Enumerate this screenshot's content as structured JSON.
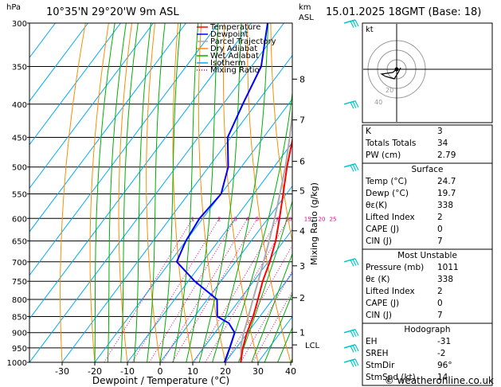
{
  "header": {
    "hpa": "hPa",
    "location": "10°35'N 29°20'W 9m ASL",
    "km": "km",
    "asl": "ASL",
    "datetime": "15.01.2025 18GMT (Base: 18)"
  },
  "chart_data": {
    "type": "line",
    "xlabel": "Dewpoint / Temperature (°C)",
    "ylabel_right": "Mixing Ratio (g/kg)",
    "x_ticks": [
      -30,
      -20,
      -10,
      0,
      10,
      20,
      30,
      40
    ],
    "xlim": [
      -35,
      40
    ],
    "pressure_levels": [
      300,
      350,
      400,
      450,
      500,
      550,
      600,
      650,
      700,
      750,
      800,
      850,
      900,
      950,
      1000
    ],
    "ylim": [
      300,
      1000
    ],
    "km_ticks": [
      {
        "km": "1",
        "p": 899
      },
      {
        "km": "2",
        "p": 795
      },
      {
        "km": "3",
        "p": 710
      },
      {
        "km": "4",
        "p": 627
      },
      {
        "km": "5",
        "p": 544
      },
      {
        "km": "6",
        "p": 490
      },
      {
        "km": "7",
        "p": 423
      },
      {
        "km": "8",
        "p": 366
      }
    ],
    "lcl": {
      "label": "LCL",
      "p": 940
    },
    "mixing_ratio_labels": [
      "1",
      "2",
      "3",
      "4",
      "5",
      "8",
      "10",
      "15",
      "20",
      "25"
    ],
    "legend": [
      {
        "name": "Temperature",
        "color": "#ff0000"
      },
      {
        "name": "Dewpoint",
        "color": "#0000ff"
      },
      {
        "name": "Parcel Trajectory",
        "color": "#aaaaaa"
      },
      {
        "name": "Dry Adiabat",
        "color": "#ff8c00"
      },
      {
        "name": "Wet Adiabat",
        "color": "#00b000"
      },
      {
        "name": "Isotherm",
        "color": "#00aaff"
      },
      {
        "name": "Mixing Ratio",
        "color": "#e0007f"
      }
    ],
    "series": [
      {
        "name": "Temperature",
        "points": [
          {
            "p": 1000,
            "t": 24.7
          },
          {
            "p": 950,
            "t": 22.0
          },
          {
            "p": 900,
            "t": 19.8
          },
          {
            "p": 850,
            "t": 18.0
          },
          {
            "p": 800,
            "t": 15.5
          },
          {
            "p": 750,
            "t": 12.8
          },
          {
            "p": 700,
            "t": 10.5
          },
          {
            "p": 650,
            "t": 7.5
          },
          {
            "p": 600,
            "t": 3.5
          },
          {
            "p": 550,
            "t": -1.0
          },
          {
            "p": 500,
            "t": -6.0
          },
          {
            "p": 450,
            "t": -11.0
          },
          {
            "p": 400,
            "t": -18.0
          },
          {
            "p": 350,
            "t": -26.0
          },
          {
            "p": 300,
            "t": -34.5
          }
        ]
      },
      {
        "name": "Dewpoint",
        "points": [
          {
            "p": 1000,
            "t": 19.7
          },
          {
            "p": 950,
            "t": 18.0
          },
          {
            "p": 900,
            "t": 16.0
          },
          {
            "p": 870,
            "t": 12.0
          },
          {
            "p": 850,
            "t": 7.0
          },
          {
            "p": 800,
            "t": 3.0
          },
          {
            "p": 750,
            "t": -8.0
          },
          {
            "p": 700,
            "t": -18.0
          },
          {
            "p": 650,
            "t": -20.0
          },
          {
            "p": 600,
            "t": -21.0
          },
          {
            "p": 550,
            "t": -20.0
          },
          {
            "p": 500,
            "t": -24.0
          },
          {
            "p": 450,
            "t": -31.0
          },
          {
            "p": 400,
            "t": -34.0
          },
          {
            "p": 350,
            "t": -37.0
          },
          {
            "p": 300,
            "t": -45.0
          }
        ]
      },
      {
        "name": "Parcel Trajectory",
        "points": [
          {
            "p": 1000,
            "t": 24.7
          },
          {
            "p": 940,
            "t": 20.8
          },
          {
            "p": 900,
            "t": 18.8
          },
          {
            "p": 850,
            "t": 16.5
          },
          {
            "p": 800,
            "t": 14.0
          },
          {
            "p": 750,
            "t": 11.4
          },
          {
            "p": 700,
            "t": 8.6
          },
          {
            "p": 650,
            "t": 5.5
          },
          {
            "p": 600,
            "t": 2.0
          },
          {
            "p": 550,
            "t": -2.0
          },
          {
            "p": 500,
            "t": -6.5
          },
          {
            "p": 450,
            "t": -12.0
          },
          {
            "p": 400,
            "t": -18.5
          },
          {
            "p": 350,
            "t": -26.5
          },
          {
            "p": 300,
            "t": -35.5
          }
        ]
      }
    ],
    "wind_barbs_p": [
      300,
      400,
      500,
      700,
      900,
      950,
      1000
    ]
  },
  "hodograph": {
    "label": "kt",
    "ring_labels": [
      "20",
      "40"
    ]
  },
  "table": {
    "indices": [
      {
        "label": "K",
        "value": "3"
      },
      {
        "label": "Totals Totals",
        "value": "34"
      },
      {
        "label": "PW (cm)",
        "value": "2.79"
      }
    ],
    "surface": {
      "title": "Surface",
      "rows": [
        {
          "label": "Temp (°C)",
          "value": "24.7"
        },
        {
          "label": "Dewp (°C)",
          "value": "19.7"
        },
        {
          "label": "θε(K)",
          "value": "338"
        },
        {
          "label": "Lifted Index",
          "value": "2"
        },
        {
          "label": "CAPE (J)",
          "value": "0"
        },
        {
          "label": "CIN (J)",
          "value": "7"
        }
      ]
    },
    "most_unstable": {
      "title": "Most Unstable",
      "rows": [
        {
          "label": "Pressure (mb)",
          "value": "1011"
        },
        {
          "label": "θε (K)",
          "value": "338"
        },
        {
          "label": "Lifted Index",
          "value": "2"
        },
        {
          "label": "CAPE (J)",
          "value": "0"
        },
        {
          "label": "CIN (J)",
          "value": "7"
        }
      ]
    },
    "hodograph": {
      "title": "Hodograph",
      "rows": [
        {
          "label": "EH",
          "value": "-31"
        },
        {
          "label": "SREH",
          "value": "-2"
        },
        {
          "label": "StmDir",
          "value": "96°"
        },
        {
          "label": "StmSpd (kt)",
          "value": "14"
        }
      ]
    }
  },
  "footer": {
    "credit": "© weatheronline.co.uk"
  },
  "colors": {
    "temperature": "#ff0000",
    "dewpoint": "#0000ff",
    "parcel": "#aaaaaa",
    "dry_adiabat": "#ff8c00",
    "wet_adiabat": "#00b000",
    "isotherm": "#00aaff",
    "mixing_ratio": "#e0007f",
    "barb": "#00c8c8"
  }
}
